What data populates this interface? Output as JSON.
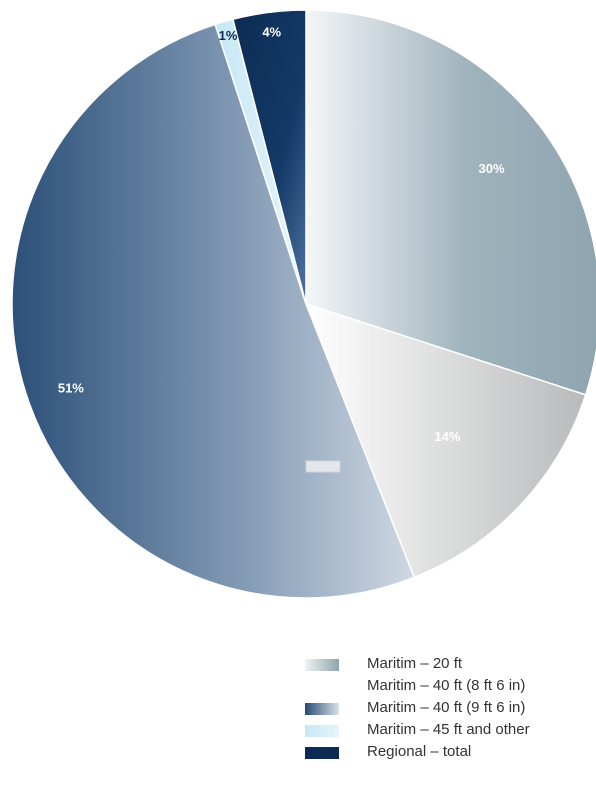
{
  "chart_data": {
    "type": "pie",
    "title": "",
    "slices": [
      {
        "label": "Maritim – 20 ft",
        "value": 30,
        "display": "30%",
        "color": "#8fa7b2"
      },
      {
        "label": "Maritim – 40 ft (8 ft 6 in)",
        "value": 14,
        "display": "14%",
        "color": "#c9cbcd"
      },
      {
        "label": "Maritim – 40 ft (9 ft 6 in)",
        "value": 51,
        "display": "51%",
        "color": "#3d5f86"
      },
      {
        "label": "Maritim – 45 ft and other",
        "value": 1,
        "display": "1%",
        "color": "#cde9f5"
      },
      {
        "label": "Regional – total",
        "value": 4,
        "display": "4%",
        "color": "#0f2f57"
      }
    ],
    "legend": {
      "position": "bottom-right",
      "items": [
        {
          "label": "Maritim – 20 ft",
          "color": "#8fa7b2"
        },
        {
          "label": "Maritim – 40 ft (8 ft 6 in)",
          "color": ""
        },
        {
          "label": "Maritim – 40 ft (9 ft 6 in)",
          "color": "#3d5f86"
        },
        {
          "label": "Maritim – 45 ft and other",
          "color": "#cde9f5"
        },
        {
          "label": "Regional – total",
          "color": "#0f2f57"
        }
      ]
    }
  }
}
